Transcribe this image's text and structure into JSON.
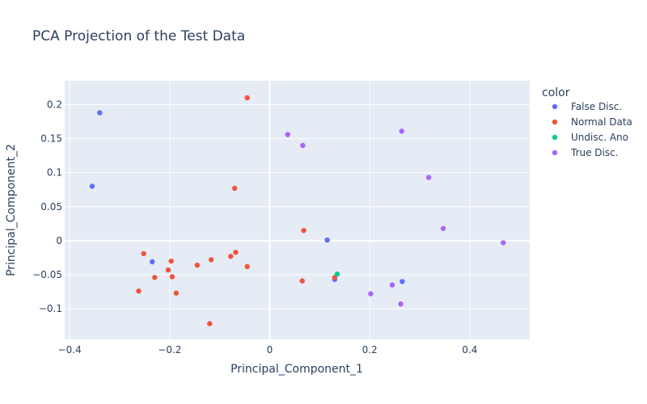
{
  "chart_data": {
    "type": "scatter",
    "title": "PCA Projection of the Test Data",
    "xlabel": "Principal_Component_1",
    "ylabel": "Principal_Component_2",
    "xlim": [
      -0.41,
      0.52
    ],
    "ylim": [
      -0.145,
      0.235
    ],
    "xticks": [
      -0.4,
      -0.2,
      0,
      0.2,
      0.4
    ],
    "xtick_labels": [
      "−0.4",
      "−0.2",
      "0",
      "0.2",
      "0.4"
    ],
    "yticks": [
      -0.1,
      -0.05,
      0,
      0.05,
      0.1,
      0.15,
      0.2
    ],
    "ytick_labels": [
      "−0.1",
      "−0.05",
      "0",
      "0.05",
      "0.1",
      "0.15",
      "0.2"
    ],
    "grid": true,
    "plot_background": "#e5ecf6",
    "legend_title": "color",
    "legend_position": "right",
    "series": [
      {
        "name": "False Disc.",
        "color": "#636efa",
        "points": [
          {
            "x": -0.34,
            "y": 0.188
          },
          {
            "x": -0.355,
            "y": 0.08
          },
          {
            "x": -0.235,
            "y": -0.031
          },
          {
            "x": 0.115,
            "y": 0.001
          },
          {
            "x": 0.13,
            "y": -0.057
          },
          {
            "x": 0.265,
            "y": -0.06
          }
        ]
      },
      {
        "name": "Normal Data",
        "color": "#ef553b",
        "points": [
          {
            "x": -0.045,
            "y": 0.21
          },
          {
            "x": -0.07,
            "y": 0.077
          },
          {
            "x": 0.068,
            "y": 0.015
          },
          {
            "x": -0.252,
            "y": -0.019
          },
          {
            "x": -0.197,
            "y": -0.03
          },
          {
            "x": -0.203,
            "y": -0.043
          },
          {
            "x": -0.23,
            "y": -0.054
          },
          {
            "x": -0.195,
            "y": -0.053
          },
          {
            "x": -0.262,
            "y": -0.074
          },
          {
            "x": -0.187,
            "y": -0.077
          },
          {
            "x": -0.145,
            "y": -0.036
          },
          {
            "x": -0.117,
            "y": -0.028
          },
          {
            "x": -0.078,
            "y": -0.023
          },
          {
            "x": -0.068,
            "y": -0.017
          },
          {
            "x": -0.045,
            "y": -0.038
          },
          {
            "x": 0.065,
            "y": -0.059
          },
          {
            "x": -0.12,
            "y": -0.122
          },
          {
            "x": 0.13,
            "y": -0.054
          }
        ]
      },
      {
        "name": "Undisc. Ano",
        "color": "#00cc96",
        "points": [
          {
            "x": 0.135,
            "y": -0.049
          }
        ]
      },
      {
        "name": "True Disc.",
        "color": "#ab63fa",
        "points": [
          {
            "x": 0.036,
            "y": 0.156
          },
          {
            "x": 0.066,
            "y": 0.14
          },
          {
            "x": 0.264,
            "y": 0.161
          },
          {
            "x": 0.318,
            "y": 0.093
          },
          {
            "x": 0.347,
            "y": 0.018
          },
          {
            "x": 0.467,
            "y": -0.003
          },
          {
            "x": 0.202,
            "y": -0.078
          },
          {
            "x": 0.245,
            "y": -0.065
          },
          {
            "x": 0.262,
            "y": -0.093
          }
        ]
      }
    ]
  }
}
